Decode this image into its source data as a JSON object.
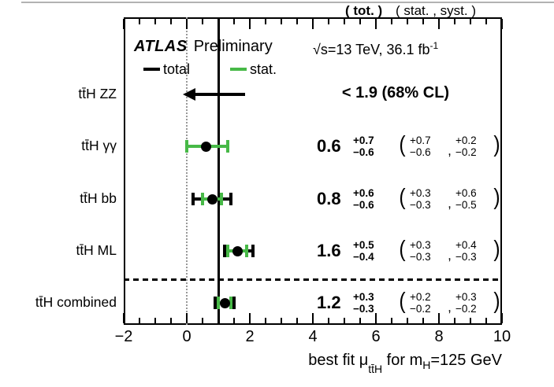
{
  "header": {
    "tot": "( tot. )",
    "stat_syst": "( stat. , syst. )"
  },
  "infobox": {
    "experiment": "ATLAS",
    "status": "Preliminary",
    "lumi_text": "√s=13 TeV, 36.1 fb",
    "lumi_exp": "-1",
    "legend": {
      "total": "total",
      "stat": "stat."
    }
  },
  "axis": {
    "tick_labels": [
      "−2",
      "0",
      "2",
      "4",
      "6",
      "8",
      "10"
    ],
    "title": {
      "pre": "best fit ",
      "mu": "μ",
      "mu_sub": "tt̄H",
      "mid": " for m",
      "m_sub": "H",
      "post": "=125 GeV"
    }
  },
  "chart_data": {
    "type": "scatter",
    "title": "ATLAS Preliminary ttH best-fit signal strength summary",
    "xlabel": "best fit μ_tt̄H for m_H=125 GeV",
    "xlim": [
      -2,
      10
    ],
    "x_major_ticks": [
      -2,
      0,
      2,
      4,
      6,
      8,
      10
    ],
    "x_minor_step": 0.5,
    "grid": false,
    "legend_position": "top-left-inside",
    "legend": [
      {
        "name": "total",
        "color": "#000000"
      },
      {
        "name": "stat.",
        "color": "#47b947"
      }
    ],
    "reference_lines": [
      {
        "x": 0,
        "style": "dotted",
        "color": "#999999"
      },
      {
        "x": 1,
        "style": "solid",
        "color": "#000000"
      }
    ],
    "separator_after_row": 3,
    "rows": [
      {
        "label": "tt̄H ZZ",
        "type": "upper_limit",
        "limit": 1.9,
        "cl": "68% CL",
        "display": {
          "limit": "< 1.9 (68% CL)"
        }
      },
      {
        "label": "tt̄H γγ",
        "type": "point",
        "value": 0.6,
        "tot_up": 0.7,
        "tot_dn": 0.6,
        "stat_up": 0.7,
        "stat_dn": 0.6,
        "syst_up": 0.2,
        "syst_dn": 0.2,
        "display": {
          "value": "0.6",
          "tot": [
            "+0.7",
            "−0.6"
          ],
          "stat": [
            "+0.7",
            "−0.6"
          ],
          "syst": [
            "+0.2",
            "−0.2"
          ]
        }
      },
      {
        "label": "tt̄H bb",
        "type": "point",
        "value": 0.8,
        "tot_up": 0.6,
        "tot_dn": 0.6,
        "stat_up": 0.3,
        "stat_dn": 0.3,
        "syst_up": 0.6,
        "syst_dn": 0.5,
        "display": {
          "value": "0.8",
          "tot": [
            "+0.6",
            "−0.6"
          ],
          "stat": [
            "+0.3",
            "−0.3"
          ],
          "syst": [
            "+0.6",
            "−0.5"
          ]
        }
      },
      {
        "label": "tt̄H ML",
        "type": "point",
        "value": 1.6,
        "tot_up": 0.5,
        "tot_dn": 0.4,
        "stat_up": 0.3,
        "stat_dn": 0.3,
        "syst_up": 0.4,
        "syst_dn": 0.3,
        "display": {
          "value": "1.6",
          "tot": [
            "+0.5",
            "−0.4"
          ],
          "stat": [
            "+0.3",
            "−0.3"
          ],
          "syst": [
            "+0.4",
            "−0.3"
          ]
        }
      },
      {
        "label": "tt̄H combined",
        "type": "point",
        "value": 1.2,
        "tot_up": 0.3,
        "tot_dn": 0.3,
        "stat_up": 0.2,
        "stat_dn": 0.2,
        "syst_up": 0.3,
        "syst_dn": 0.2,
        "display": {
          "value": "1.2",
          "tot": [
            "+0.3",
            "−0.3"
          ],
          "stat": [
            "+0.2",
            "−0.2"
          ],
          "syst": [
            "+0.3",
            "−0.2"
          ]
        }
      }
    ],
    "format": {
      "open": "(",
      "close": ")",
      "comma": ","
    }
  }
}
